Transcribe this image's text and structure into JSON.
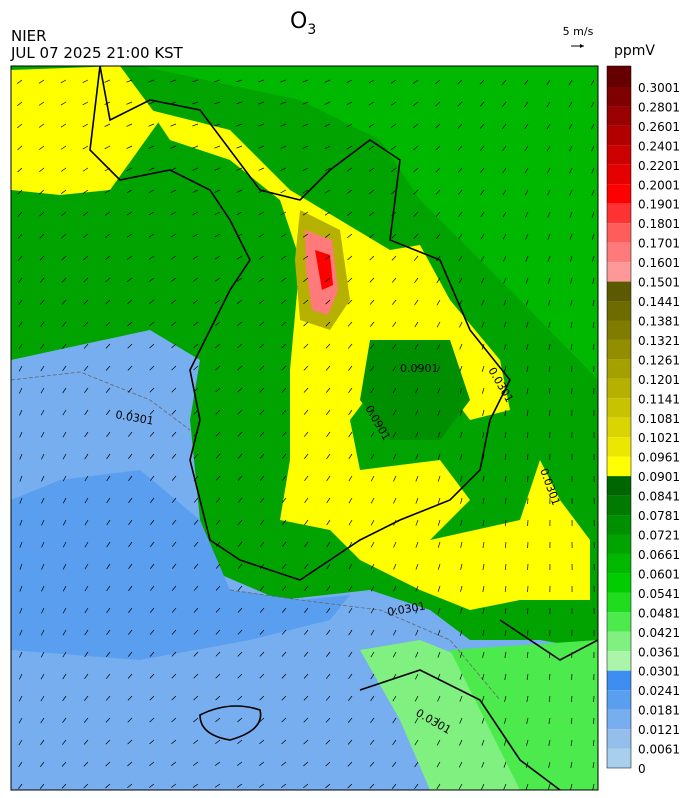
{
  "header": {
    "title": "O",
    "title_subscript": "3",
    "agency": "NIER",
    "datetime": "JUL 07 2025 21:00 KST"
  },
  "wind_scale": {
    "label": "5 m/s"
  },
  "colorbar": {
    "unit": "ppmV",
    "levels": [
      0.3001,
      0.2801,
      0.2601,
      0.2401,
      0.2201,
      0.2001,
      0.1901,
      0.1801,
      0.1701,
      0.1601,
      0.1501,
      0.1441,
      0.1381,
      0.1321,
      0.1261,
      0.1201,
      0.1141,
      0.1081,
      0.1021,
      0.0961,
      0.0901,
      0.0841,
      0.0781,
      0.0721,
      0.0661,
      0.0601,
      0.0541,
      0.0481,
      0.0421,
      0.0361,
      0.0301,
      0.0241,
      0.0181,
      0.0121,
      0.0061,
      0
    ],
    "colors": [
      "#660000",
      "#7f0000",
      "#990000",
      "#b20000",
      "#cc0000",
      "#e50000",
      "#ff0000",
      "#ff3333",
      "#ff5c5c",
      "#ff7a7a",
      "#ff9999",
      "#5c5a00",
      "#6e6b00",
      "#807c00",
      "#928e00",
      "#a4a000",
      "#b6b100",
      "#c8c300",
      "#dad500",
      "#ece700",
      "#ffff00",
      "#006600",
      "#007a00",
      "#008f00",
      "#00a300",
      "#00b800",
      "#00cc00",
      "#1fdc1f",
      "#4dea4d",
      "#80f080",
      "#aaf5aa",
      "#3d8ef0",
      "#5a9ef0",
      "#77aef0",
      "#94bfec",
      "#a8d0ec"
    ]
  },
  "map_labels": [
    "0.0901",
    "0.0301",
    "0.0901",
    "0.0301",
    "0.0301",
    "0.0301",
    "0.0301"
  ]
}
